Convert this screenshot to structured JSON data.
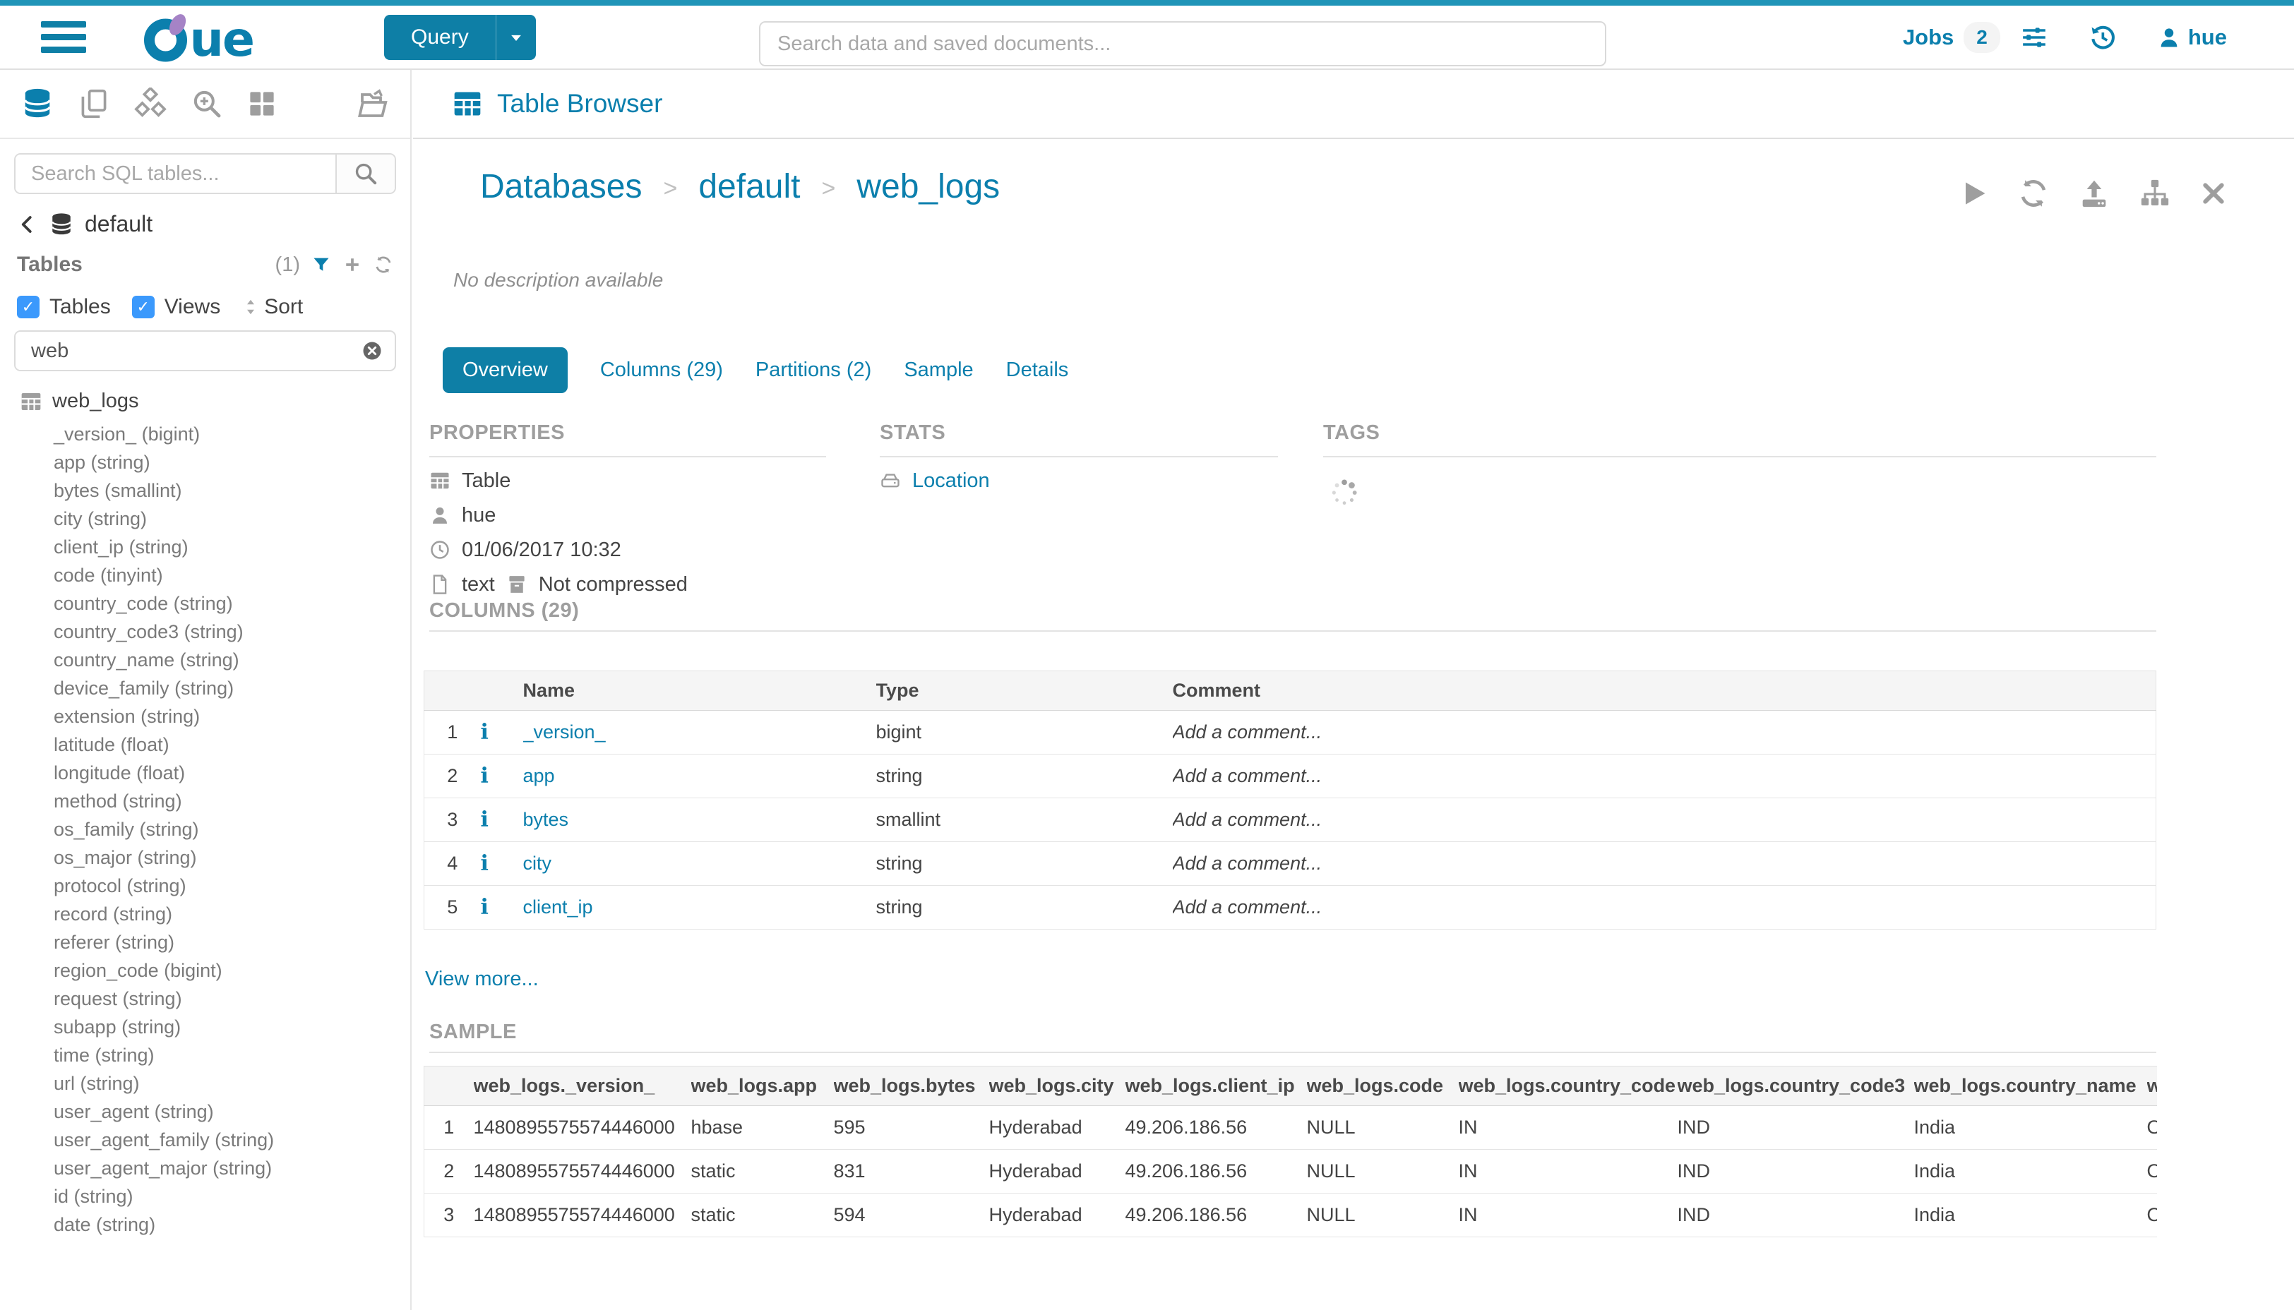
{
  "colors": {
    "accent": "#0b7fad",
    "top_strip": "#2095b8",
    "button": "#0e7fa6",
    "checkbox": "#3b99fc"
  },
  "topbar": {
    "query_label": "Query",
    "search_placeholder": "Search data and saved documents...",
    "jobs_label": "Jobs",
    "jobs_badge": "2",
    "username": "hue"
  },
  "sidebar": {
    "search_placeholder": "Search SQL tables...",
    "database": "default",
    "tables_label": "Tables",
    "tables_count": "(1)",
    "checkbox_tables": "Tables",
    "checkbox_views": "Views",
    "sort_label": "Sort",
    "filter_value": "web",
    "table_name": "web_logs",
    "columns": [
      "_version_ (bigint)",
      "app (string)",
      "bytes (smallint)",
      "city (string)",
      "client_ip (string)",
      "code (tinyint)",
      "country_code (string)",
      "country_code3 (string)",
      "country_name (string)",
      "device_family (string)",
      "extension (string)",
      "latitude (float)",
      "longitude (float)",
      "method (string)",
      "os_family (string)",
      "os_major (string)",
      "protocol (string)",
      "record (string)",
      "referer (string)",
      "region_code (bigint)",
      "request (string)",
      "subapp (string)",
      "time (string)",
      "url (string)",
      "user_agent (string)",
      "user_agent_family (string)",
      "user_agent_major (string)",
      "id (string)",
      "date (string)"
    ]
  },
  "header": {
    "app_title": "Table Browser"
  },
  "main": {
    "breadcrumb": {
      "items": [
        "Databases",
        "default",
        "web_logs"
      ]
    },
    "description": "No description available",
    "tabs": [
      {
        "label": "Overview",
        "active": true
      },
      {
        "label": "Columns (29)",
        "active": false
      },
      {
        "label": "Partitions (2)",
        "active": false
      },
      {
        "label": "Sample",
        "active": false
      },
      {
        "label": "Details",
        "active": false
      }
    ],
    "properties": {
      "title": "PROPERTIES",
      "entity_type": "Table",
      "owner": "hue",
      "created": "01/06/2017 10:32",
      "format": "text",
      "compression": "Not compressed"
    },
    "stats": {
      "title": "STATS",
      "location_label": "Location"
    },
    "tags": {
      "title": "TAGS"
    },
    "columns_section": {
      "title": "COLUMNS (29)",
      "headers": [
        "Name",
        "Type",
        "Comment"
      ],
      "comment_placeholder": "Add a comment...",
      "view_more": "View more...",
      "rows": [
        {
          "num": "1",
          "name": "_version_",
          "type": "bigint"
        },
        {
          "num": "2",
          "name": "app",
          "type": "string"
        },
        {
          "num": "3",
          "name": "bytes",
          "type": "smallint"
        },
        {
          "num": "4",
          "name": "city",
          "type": "string"
        },
        {
          "num": "5",
          "name": "client_ip",
          "type": "string"
        }
      ]
    },
    "sample_section": {
      "title": "SAMPLE",
      "headers": [
        "web_logs._version_",
        "web_logs.app",
        "web_logs.bytes",
        "web_logs.city",
        "web_logs.client_ip",
        "web_logs.code",
        "web_logs.country_code",
        "web_logs.country_code3",
        "web_logs.country_name",
        "w"
      ],
      "rows": [
        {
          "num": "1",
          "cells": [
            "1480895575574446000",
            "hbase",
            "595",
            "Hyderabad",
            "49.206.186.56",
            "NULL",
            "IN",
            "IND",
            "India",
            "O"
          ]
        },
        {
          "num": "2",
          "cells": [
            "1480895575574446000",
            "static",
            "831",
            "Hyderabad",
            "49.206.186.56",
            "NULL",
            "IN",
            "IND",
            "India",
            "O"
          ]
        },
        {
          "num": "3",
          "cells": [
            "1480895575574446000",
            "static",
            "594",
            "Hyderabad",
            "49.206.186.56",
            "NULL",
            "IN",
            "IND",
            "India",
            "O"
          ]
        }
      ]
    }
  }
}
